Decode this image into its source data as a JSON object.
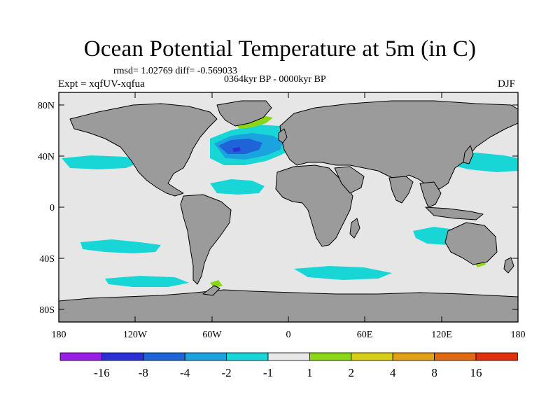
{
  "title": "Ocean Potential Temperature at 5m (in C)",
  "stats": "rmsd= 1.02769 diff= -0.569033",
  "period": "0364kyr BP - 0000kyr BP",
  "experiment": "Expt = xqfUV-xqfua",
  "season": "DJF",
  "lat_labels": [
    "80N",
    "40N",
    "0",
    "40S",
    "80S"
  ],
  "lon_labels": [
    "180",
    "120W",
    "60W",
    "0",
    "60E",
    "120E",
    "180"
  ],
  "colorbar": {
    "labels": [
      "-16",
      "-8",
      "-4",
      "-2",
      "-1",
      "1",
      "2",
      "4",
      "8",
      "16"
    ],
    "colors": [
      "#9a1ee8",
      "#2b2fd6",
      "#1f63d8",
      "#1aa3df",
      "#19d6d6",
      "#e8e8e8",
      "#8cd618",
      "#d6cf18",
      "#e0a116",
      "#e06a10",
      "#e0300c"
    ]
  },
  "colors": {
    "land": "#9b9b9b",
    "ocean": "#e6e6e6",
    "cyan": "#19d6d6",
    "light_blue": "#1aa3df",
    "blue": "#1f63d8",
    "dark_blue": "#2b2fd6",
    "green": "#8cd618",
    "yellow": "#d6cf18"
  }
}
